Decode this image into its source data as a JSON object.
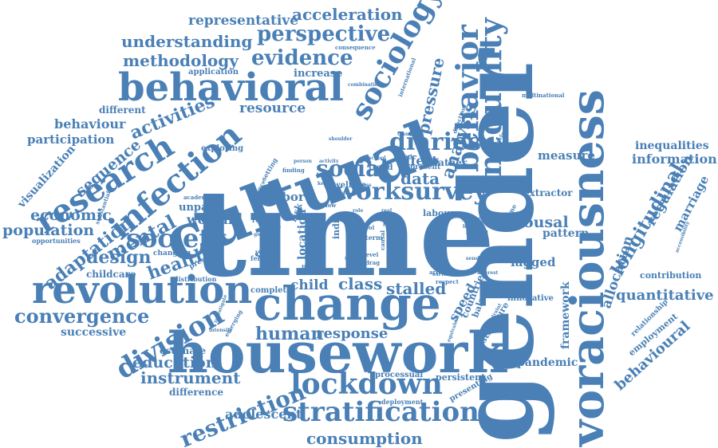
{
  "style": {
    "word_color": "#4a80b6",
    "light_word_color": "#6e9bc8",
    "background": "#ffffff"
  },
  "words": {
    "time": "time",
    "gender": "gender",
    "cultural": "cultural",
    "housework": "housework",
    "change": "change",
    "voraciousness": "voraciousness",
    "behavioral": "behavioral",
    "revolution": "revolution",
    "inequality": "inequality",
    "behavior": "behavior",
    "sociology": "sociology",
    "research": "research",
    "infection": "infection",
    "stratification": "stratification",
    "lockdown": "lockdown",
    "division": "division",
    "society": "society",
    "worksurvey": "worksurvey",
    "social": "social",
    "diaries": "diaries",
    "perspective": "perspective",
    "evidence": "evidence",
    "understanding": "understanding",
    "methodology": "methodology",
    "acceleration": "acceleration",
    "representative": "representative",
    "analysis": "analysis",
    "pressure": "pressure",
    "longitudinal": "longitudinal",
    "convergence": "convergence",
    "restriction": "restriction",
    "consumption": "consumption",
    "mental": "mental",
    "adaptation": "adaptation",
    "design": "design",
    "health": "health",
    "economic": "economic",
    "population": "population",
    "activities": "activities",
    "behaviour": "behaviour",
    "participation": "participation",
    "sequence": "sequence",
    "visualization": "visualization",
    "resource": "resource",
    "increase": "increase",
    "application": "application",
    "different": "different",
    "exploring": "exploring",
    "education": "education",
    "instrument": "instrument",
    "estimate": "estimate",
    "successive": "successive",
    "difference": "difference",
    "adolescent": "adolescent",
    "human": "human",
    "response": "response",
    "class": "class",
    "stalled": "stalled",
    "child": "child",
    "woman": "woman",
    "unpaid": "unpaid",
    "childcare": "childcare",
    "quantitative": "quantitative",
    "behavioural": "behavioural",
    "allocation": "allocation",
    "regulation": "regulation",
    "marriage": "marriage",
    "information": "information",
    "inequalities": "inequalities",
    "measure": "measure",
    "extractor": "extractor",
    "spousal": "spousal",
    "pattern": "pattern",
    "lagged": "lagged",
    "framework": "framework",
    "pandemic": "pandemic",
    "innovative": "innovative",
    "employment": "employment",
    "contribution": "contribution",
    "relationship": "relationship",
    "data": "data",
    "effect": "effect",
    "father": "father",
    "present": "present",
    "trend": "trend",
    "labor": "labor",
    "labour": "labour",
    "welfare": "welfare",
    "speed": "speed",
    "policy": "policy",
    "country": "countrie",
    "balance": "balance",
    "structure": "structure",
    "processual": "processual",
    "persistent": "persistent",
    "presenting": "presenting",
    "deployment": "deployment",
    "location": "location",
    "family": "family",
    "risk": "risk",
    "india": "india",
    "complete": "complete",
    "distribution": "distribution",
    "presence": "presence",
    "changing": "changing",
    "opportunities": "opportunities",
    "substantial": "substantial",
    "academic": "academic",
    "recent": "recent",
    "young": "young",
    "female": "female",
    "paper": "paper",
    "study": "study",
    "result": "result",
    "term": "term",
    "level": "level",
    "wave": "wave",
    "article": "article",
    "respect": "respect",
    "capital": "capital",
    "regime": "regime",
    "particular": "particular",
    "multinational": "multinational",
    "direction": "direction",
    "overview": "overview",
    "transition": "transition",
    "international": "international",
    "consequence": "consequence",
    "combination": "combination",
    "school": "school",
    "impact": "impact",
    "finding": "finding",
    "setting": "setting",
    "advance": "advance",
    "activity": "activity",
    "person": "person",
    "adult": "adult",
    "shoulder": "shoulder",
    "slow": "slow",
    "tool": "tool",
    "poor": "poor",
    "more": "more",
    "cross": "cross",
    "greater": "greater",
    "sensitive": "sensitive",
    "stage": "stage",
    "national": "national",
    "interest": "interest",
    "burden": "burden",
    "accessibility": "accessibility",
    "intensity": "intensity",
    "emerging": "emerging",
    "investigate": "investigate",
    "equivalent": "equivalent",
    "constraint": "constraint",
    "general": "general",
    "provide": "provide",
    "causal": "causal",
    "drag": "drag",
    "survival": "survival",
    "real": "real",
    "key": "key",
    "role": "role"
  }
}
